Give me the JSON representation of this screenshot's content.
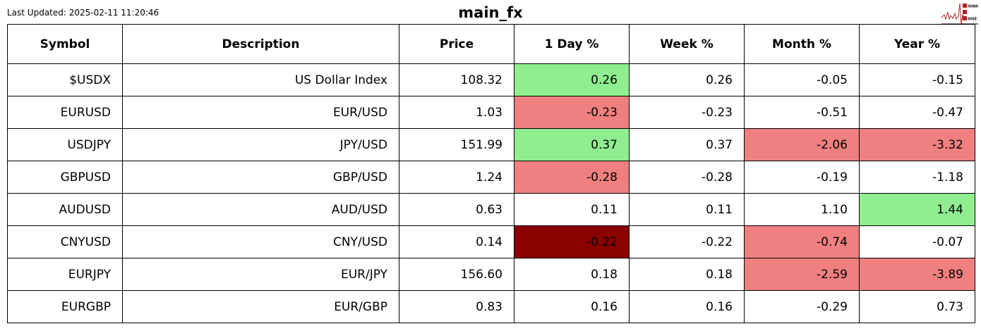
{
  "header": {
    "last_updated": "Last Updated: 2025-02-11 11:20:46",
    "title": "main_fx",
    "logo_text": "SIGNAL 2 NOISE"
  },
  "colors": {
    "positive": "#90ee90",
    "negative": "#f08080",
    "strong_negative": "#8b0000",
    "neutral": "#ffffff"
  },
  "columns": [
    "Symbol",
    "Description",
    "Price",
    "1 Day %",
    "Week %",
    "Month %",
    "Year %"
  ],
  "rows": [
    {
      "cells": [
        "$USDX",
        "US Dollar Index",
        "108.32",
        "0.26",
        "0.26",
        "-0.05",
        "-0.15"
      ],
      "colors": [
        "",
        "",
        "",
        "positive",
        "",
        "",
        ""
      ]
    },
    {
      "cells": [
        "EURUSD",
        "EUR/USD",
        "1.03",
        "-0.23",
        "-0.23",
        "-0.51",
        "-0.47"
      ],
      "colors": [
        "",
        "",
        "",
        "negative",
        "",
        "",
        ""
      ]
    },
    {
      "cells": [
        "USDJPY",
        "JPY/USD",
        "151.99",
        "0.37",
        "0.37",
        "-2.06",
        "-3.32"
      ],
      "colors": [
        "",
        "",
        "",
        "positive",
        "",
        "negative",
        "negative"
      ]
    },
    {
      "cells": [
        "GBPUSD",
        "GBP/USD",
        "1.24",
        "-0.28",
        "-0.28",
        "-0.19",
        "-1.18"
      ],
      "colors": [
        "",
        "",
        "",
        "negative",
        "",
        "",
        ""
      ]
    },
    {
      "cells": [
        "AUDUSD",
        "AUD/USD",
        "0.63",
        "0.11",
        "0.11",
        "1.10",
        "1.44"
      ],
      "colors": [
        "",
        "",
        "",
        "",
        "",
        "",
        "positive"
      ]
    },
    {
      "cells": [
        "CNYUSD",
        "CNY/USD",
        "0.14",
        "-0.22",
        "-0.22",
        "-0.74",
        "-0.07"
      ],
      "colors": [
        "",
        "",
        "",
        "strong_negative",
        "",
        "negative",
        ""
      ]
    },
    {
      "cells": [
        "EURJPY",
        "EUR/JPY",
        "156.60",
        "0.18",
        "0.18",
        "-2.59",
        "-3.89"
      ],
      "colors": [
        "",
        "",
        "",
        "",
        "",
        "negative",
        "negative"
      ]
    },
    {
      "cells": [
        "EURGBP",
        "EUR/GBP",
        "0.83",
        "0.16",
        "0.16",
        "-0.29",
        "0.73"
      ],
      "colors": [
        "",
        "",
        "",
        "",
        "",
        "",
        ""
      ]
    }
  ]
}
